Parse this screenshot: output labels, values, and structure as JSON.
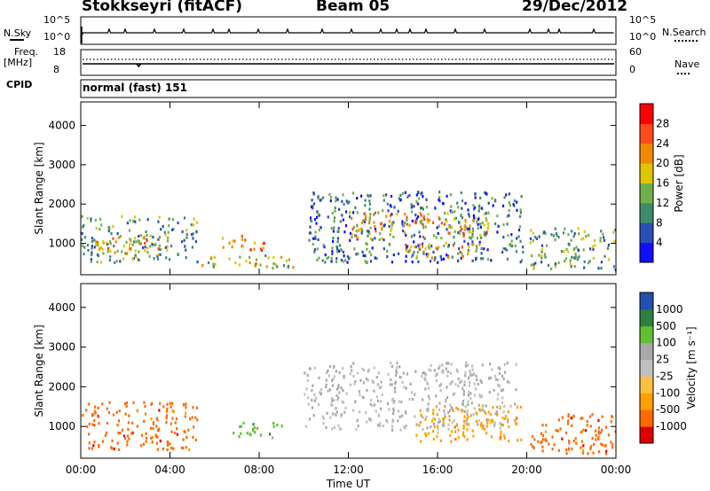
{
  "header": {
    "station": "Stokkseyri (fitACF)",
    "beam": "Beam 05",
    "date": "29/Dec/2012"
  },
  "top_panels": {
    "nsky_label": "N.Sky",
    "nsky_top_tick": "10^5",
    "nsky_bottom_tick": "10^0",
    "nsearch_label": "N.Search",
    "nsearch_top_tick": "10^5",
    "nsearch_bottom_tick": "10^0",
    "freq_label": "Freq.",
    "freq_unit": "[MHz]",
    "freq_top_tick": "18",
    "freq_bottom_tick": "8",
    "nave_label": "Nave",
    "nave_top_tick": "60",
    "nave_bottom_tick": "0",
    "cpid_label": "CPID",
    "cpid_value": "normal (fast) 151"
  },
  "colors": {
    "power_scale": [
      "#1010ff",
      "#2a4fb5",
      "#3d8b6a",
      "#70b04a",
      "#e0c400",
      "#f08a00",
      "#ff4a1a",
      "#ff0000"
    ],
    "velocity_scale": [
      "#e00000",
      "#ff6a00",
      "#ffa000",
      "#ffc040",
      "#c0c0c0",
      "#a8a8a8",
      "#60c030",
      "#2e8040",
      "#2050b0"
    ],
    "data_line": "#000000"
  },
  "chart_data": [
    {
      "type": "heatmap",
      "name": "Power",
      "ylabel": "Slant Range [km]",
      "xlabel": "",
      "ylim": [
        200,
        4600
      ],
      "y_ticks": [
        "1000",
        "2000",
        "3000",
        "4000"
      ],
      "colorbar_label": "Power [dB]",
      "colorbar_ticks": [
        "4",
        "8",
        "12",
        "16",
        "20",
        "24",
        "28"
      ],
      "colorbar_range": [
        0,
        32
      ],
      "regions": [
        {
          "t": [
            0,
            5.2
          ],
          "r": [
            500,
            1700
          ],
          "level": 14
        },
        {
          "t": [
            0.4,
            3.6
          ],
          "r": [
            700,
            1200
          ],
          "level": 22
        },
        {
          "t": [
            5.4,
            9.6
          ],
          "r": [
            350,
            700
          ],
          "level": 20
        },
        {
          "t": [
            6.3,
            8.2
          ],
          "r": [
            800,
            1200
          ],
          "level": 28
        },
        {
          "t": [
            10.2,
            19.8
          ],
          "r": [
            500,
            2300
          ],
          "level": 12
        },
        {
          "t": [
            12.0,
            18.4
          ],
          "r": [
            1100,
            1800
          ],
          "level": 24
        },
        {
          "t": [
            14.5,
            18.0
          ],
          "r": [
            600,
            1000
          ],
          "level": 22
        },
        {
          "t": [
            20.0,
            24.0
          ],
          "r": [
            300,
            1400
          ],
          "level": 16
        }
      ]
    },
    {
      "type": "heatmap",
      "name": "Velocity",
      "ylabel": "Slant Range [km]",
      "xlabel": "Time UT",
      "ylim": [
        200,
        4600
      ],
      "y_ticks": [
        "1000",
        "2000",
        "3000",
        "4000"
      ],
      "x_ticks": [
        "00:00",
        "04:00",
        "08:00",
        "12:00",
        "16:00",
        "20:00",
        "00:00"
      ],
      "colorbar_label": "Velocity [m s⁻¹]",
      "colorbar_ticks": [
        "1000",
        "500",
        "100",
        "25",
        "-25",
        "-100",
        "-500",
        "-1000"
      ],
      "regions": [
        {
          "t": [
            0,
            5.2
          ],
          "r": [
            400,
            1600
          ],
          "velocity": -150
        },
        {
          "t": [
            6.8,
            9.0
          ],
          "r": [
            700,
            1100
          ],
          "velocity": 80
        },
        {
          "t": [
            10.0,
            19.5
          ],
          "r": [
            900,
            2600
          ],
          "velocity": 0
        },
        {
          "t": [
            15.0,
            19.8
          ],
          "r": [
            600,
            1500
          ],
          "velocity": -120
        },
        {
          "t": [
            20.0,
            24.0
          ],
          "r": [
            300,
            1300
          ],
          "velocity": -300
        }
      ]
    }
  ]
}
